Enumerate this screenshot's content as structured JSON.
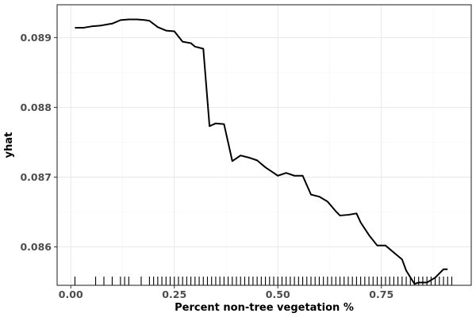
{
  "chart_data": {
    "type": "line",
    "title": "",
    "xlabel": "Percent non-tree vegetation %",
    "ylabel": "yhat",
    "xlim": [
      -0.033,
      0.967
    ],
    "ylim": [
      0.08545,
      0.08947
    ],
    "x_ticks": [
      0.0,
      0.25,
      0.5,
      0.75
    ],
    "x_tick_labels": [
      "0.00",
      "0.25",
      "0.50",
      "0.75"
    ],
    "y_ticks": [
      0.086,
      0.087,
      0.088,
      0.089
    ],
    "y_tick_labels": [
      "0.086",
      "0.087",
      "0.088",
      "0.089"
    ],
    "grid": true,
    "legend": "none",
    "series": [
      {
        "x": [
          0.01,
          0.03,
          0.05,
          0.07,
          0.09,
          0.1,
          0.12,
          0.14,
          0.16,
          0.18,
          0.19,
          0.21,
          0.23,
          0.25,
          0.27,
          0.29,
          0.3,
          0.32,
          0.335,
          0.35,
          0.37,
          0.39,
          0.41,
          0.43,
          0.45,
          0.47,
          0.49,
          0.5,
          0.52,
          0.54,
          0.56,
          0.58,
          0.6,
          0.62,
          0.64,
          0.65,
          0.67,
          0.69,
          0.7,
          0.72,
          0.74,
          0.76,
          0.78,
          0.8,
          0.81,
          0.83,
          0.84,
          0.86,
          0.88,
          0.9,
          0.91
        ],
        "y": [
          0.08914,
          0.08914,
          0.08916,
          0.08917,
          0.08919,
          0.0892,
          0.08925,
          0.08926,
          0.08926,
          0.08925,
          0.08924,
          0.08915,
          0.0891,
          0.08909,
          0.08894,
          0.08892,
          0.08887,
          0.08884,
          0.08773,
          0.08777,
          0.08776,
          0.08723,
          0.08731,
          0.08728,
          0.08724,
          0.08714,
          0.08706,
          0.08702,
          0.08706,
          0.08702,
          0.08702,
          0.08675,
          0.08672,
          0.08665,
          0.08651,
          0.08645,
          0.08646,
          0.08648,
          0.08635,
          0.08617,
          0.08602,
          0.08602,
          0.08592,
          0.08582,
          0.08566,
          0.08547,
          0.08549,
          0.08549,
          0.08556,
          0.08568,
          0.08568
        ]
      }
    ],
    "rug_x": [
      0.01,
      0.06,
      0.08,
      0.1,
      0.12,
      0.13,
      0.14,
      0.17,
      0.19,
      0.2,
      0.21,
      0.22,
      0.23,
      0.24,
      0.25,
      0.26,
      0.27,
      0.28,
      0.29,
      0.3,
      0.31,
      0.32,
      0.33,
      0.34,
      0.35,
      0.36,
      0.37,
      0.38,
      0.39,
      0.4,
      0.41,
      0.42,
      0.43,
      0.44,
      0.45,
      0.46,
      0.47,
      0.48,
      0.49,
      0.5,
      0.51,
      0.52,
      0.53,
      0.54,
      0.55,
      0.56,
      0.57,
      0.58,
      0.59,
      0.6,
      0.61,
      0.62,
      0.63,
      0.64,
      0.65,
      0.66,
      0.67,
      0.68,
      0.69,
      0.7,
      0.71,
      0.72,
      0.73,
      0.74,
      0.75,
      0.76,
      0.77,
      0.78,
      0.79,
      0.8,
      0.81,
      0.82,
      0.83,
      0.84,
      0.85,
      0.86,
      0.87,
      0.88,
      0.89,
      0.9,
      0.91,
      0.92
    ]
  }
}
